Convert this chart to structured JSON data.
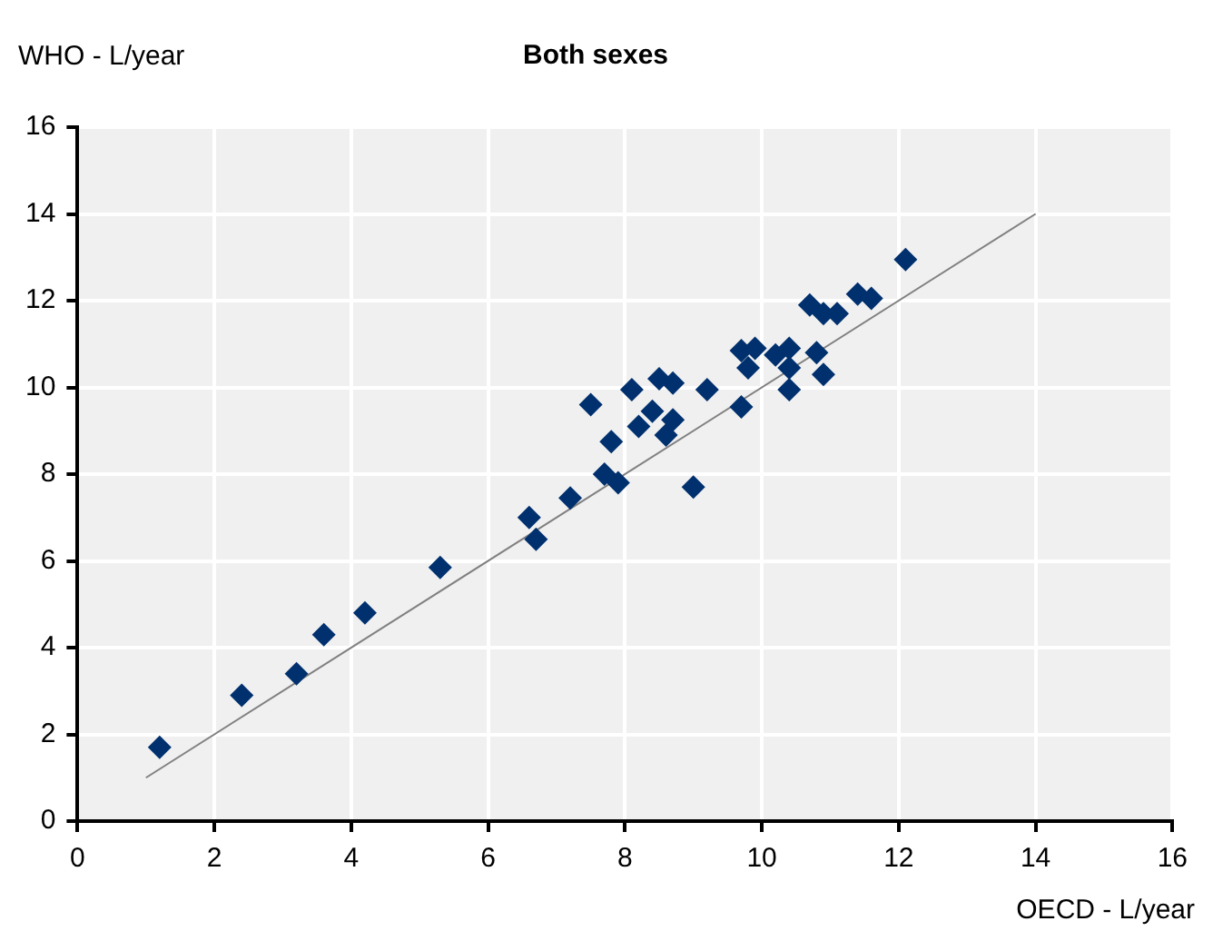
{
  "chart_data": {
    "type": "scatter",
    "title": "Both sexes",
    "xlabel": "OECD - L/year",
    "ylabel": "WHO - L/year",
    "xlim": [
      0,
      16
    ],
    "xticks": [
      0,
      2,
      4,
      6,
      8,
      10,
      12,
      14,
      16
    ],
    "ylim": [
      0,
      16
    ],
    "yticks": [
      0,
      2,
      4,
      6,
      8,
      10,
      12,
      14,
      16
    ],
    "grid": true,
    "legend": false,
    "marker": "diamond",
    "series": [
      {
        "type": "scatter",
        "color": "#00306e",
        "x": [
          1.2,
          2.4,
          3.2,
          3.6,
          4.2,
          5.3,
          6.6,
          6.7,
          7.2,
          7.5,
          7.7,
          7.8,
          7.9,
          8.1,
          8.2,
          8.4,
          8.5,
          8.6,
          8.7,
          8.7,
          9.0,
          9.2,
          9.7,
          9.7,
          9.8,
          9.9,
          10.2,
          10.4,
          10.4,
          10.4,
          10.7,
          10.8,
          10.9,
          10.9,
          11.1,
          11.4,
          11.6,
          12.1
        ],
        "values": [
          1.7,
          2.9,
          3.4,
          4.3,
          4.8,
          5.85,
          7.0,
          6.5,
          7.45,
          9.6,
          8.0,
          8.75,
          7.8,
          9.95,
          9.1,
          9.45,
          10.2,
          8.9,
          10.1,
          9.25,
          7.7,
          9.95,
          9.55,
          10.85,
          10.45,
          10.9,
          10.75,
          9.95,
          10.9,
          10.45,
          11.9,
          10.8,
          10.3,
          11.7,
          11.7,
          12.15,
          12.05,
          12.95
        ]
      },
      {
        "type": "line",
        "color": "#808080",
        "x": [
          1,
          14
        ],
        "values": [
          1,
          14
        ],
        "marker": "none",
        "line_style": "solid"
      }
    ]
  }
}
